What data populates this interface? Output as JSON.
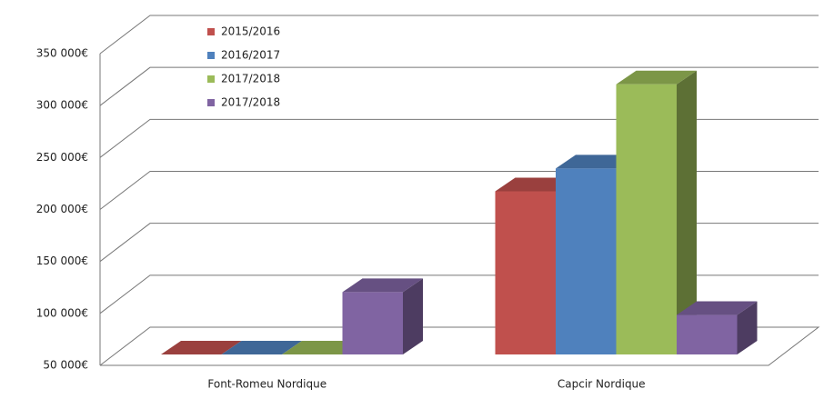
{
  "chart_data": {
    "type": "bar3d",
    "categories": [
      "Font-Romeu Nordique",
      "Capcir Nordique"
    ],
    "series": [
      {
        "name": "2015/2016",
        "color": "#c0504d",
        "values": [
          50000,
          207000
        ]
      },
      {
        "name": "2016/2017",
        "color": "#4f81bd",
        "values": [
          50000,
          229000
        ]
      },
      {
        "name": "2017/2018",
        "color": "#9bbb59",
        "values": [
          50000,
          310000
        ]
      },
      {
        "name": "2017/2018",
        "color": "#8064a2",
        "values": [
          110000,
          88000
        ]
      }
    ],
    "ylim": [
      50000,
      350000
    ],
    "yticks": [
      {
        "value": 50000,
        "label": "50 000€"
      },
      {
        "value": 100000,
        "label": "100 000€"
      },
      {
        "value": 150000,
        "label": "150 000€"
      },
      {
        "value": 200000,
        "label": "200 000€"
      },
      {
        "value": 250000,
        "label": "250 000€"
      },
      {
        "value": 300000,
        "label": "300 000€"
      },
      {
        "value": 350000,
        "label": "350 000€"
      }
    ],
    "grid": true,
    "legend": "top-left"
  }
}
